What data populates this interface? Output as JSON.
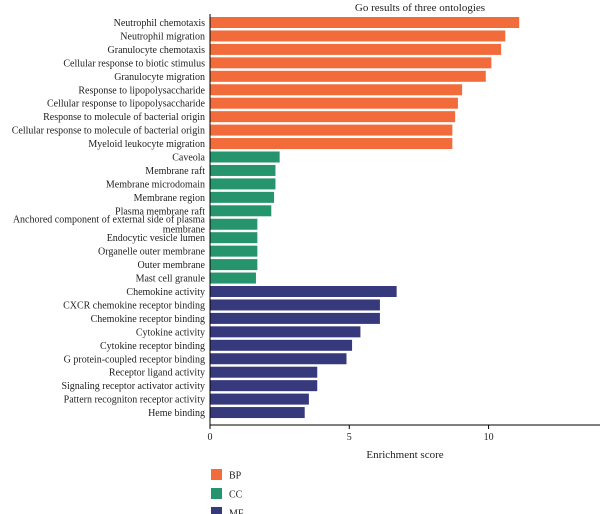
{
  "chart_data": {
    "type": "bar",
    "orientation": "horizontal",
    "title": "Go results of three ontologies",
    "xlabel": "Enrichment score",
    "ylabel": "",
    "xlim": [
      0,
      14
    ],
    "xticks": [
      0,
      5,
      10
    ],
    "grid": false,
    "legend_position": "bottom-left",
    "categories": [
      "Neutrophil chemotaxis",
      "Neutrophil migration",
      "Granulocyte chemotaxis",
      "Cellular response to biotic stimulus",
      "Granulocyte migration",
      "Response to lipopolysaccharide",
      "Cellular response to lipopolysaccharide",
      "Response to molecule of bacterial origin",
      "Cellular response to molecule of bacterial origin",
      "Myeloid leukocyte migration",
      "Caveola",
      "Membrane raft",
      "Membrane microdomain",
      "Membrane region",
      "Plasma membrane raft",
      "Anchored component of external side of plasma membrane",
      "Endocytic vesicle lumen",
      "Organelle outer membrane",
      "Outer membrane",
      "Mast cell granule",
      "Chemokine activity",
      "CXCR chemokine receptor binding",
      "Chemokine receptor binding",
      "Cytokine activity",
      "Cytokine receptor binding",
      "G protein-coupled receptor binding",
      "Receptor ligand activity",
      "Signaling receptor activator activity",
      "Pattern recogniton receptor activity",
      "Heme binding"
    ],
    "label_lines": {
      "15": [
        "Anchored component of external side of plasma",
        "membrane"
      ]
    },
    "values": [
      11.1,
      10.6,
      10.45,
      10.1,
      9.9,
      9.05,
      8.9,
      8.8,
      8.7,
      8.7,
      2.5,
      2.35,
      2.35,
      2.3,
      2.2,
      1.7,
      1.7,
      1.7,
      1.7,
      1.65,
      6.7,
      6.1,
      6.1,
      5.4,
      5.1,
      4.9,
      3.85,
      3.85,
      3.55,
      3.4
    ],
    "groups": [
      "BP",
      "BP",
      "BP",
      "BP",
      "BP",
      "BP",
      "BP",
      "BP",
      "BP",
      "BP",
      "CC",
      "CC",
      "CC",
      "CC",
      "CC",
      "CC",
      "CC",
      "CC",
      "CC",
      "CC",
      "MF",
      "MF",
      "MF",
      "MF",
      "MF",
      "MF",
      "MF",
      "MF",
      "MF",
      "MF"
    ],
    "legend": [
      {
        "name": "BP",
        "color": "#f26b3a"
      },
      {
        "name": "CC",
        "color": "#26946d"
      },
      {
        "name": "MF",
        "color": "#363a7d"
      }
    ]
  }
}
